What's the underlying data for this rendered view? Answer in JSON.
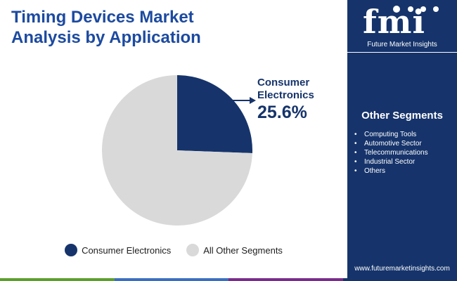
{
  "header": {
    "title_lines": [
      "Timing Devices Market",
      "Analysis by Application"
    ]
  },
  "colors": {
    "title": "#1c4aa0",
    "primary": "#16346b",
    "secondary": "#d9d9d9",
    "sidebar": "#16346b",
    "bottom_bar": [
      "#5aa02c",
      "#3a6fc0",
      "#7a2c8c",
      "#16346b"
    ]
  },
  "chart_data": {
    "type": "pie",
    "categories": [
      "Consumer Electronics",
      "All Other Segments"
    ],
    "values": [
      25.6,
      74.4
    ],
    "colors": [
      "#16346b",
      "#d9d9d9"
    ],
    "callout": {
      "category": "Consumer Electronics",
      "label_lines": [
        "Consumer",
        "Electronics"
      ],
      "value_text": "25.6%"
    },
    "legend": {
      "position": "bottom",
      "entries": [
        "Consumer Electronics",
        "All Other Segments"
      ]
    }
  },
  "sidebar": {
    "brand_mark": "fmi",
    "brand_name": "Future Market Insights",
    "segments_title": "Other Segments",
    "segments": [
      "Computing Tools",
      "Automotive Sector",
      "Telecommunications",
      "Industrial Sector",
      "Others"
    ],
    "website": "www.futuremarketinsights.com"
  }
}
